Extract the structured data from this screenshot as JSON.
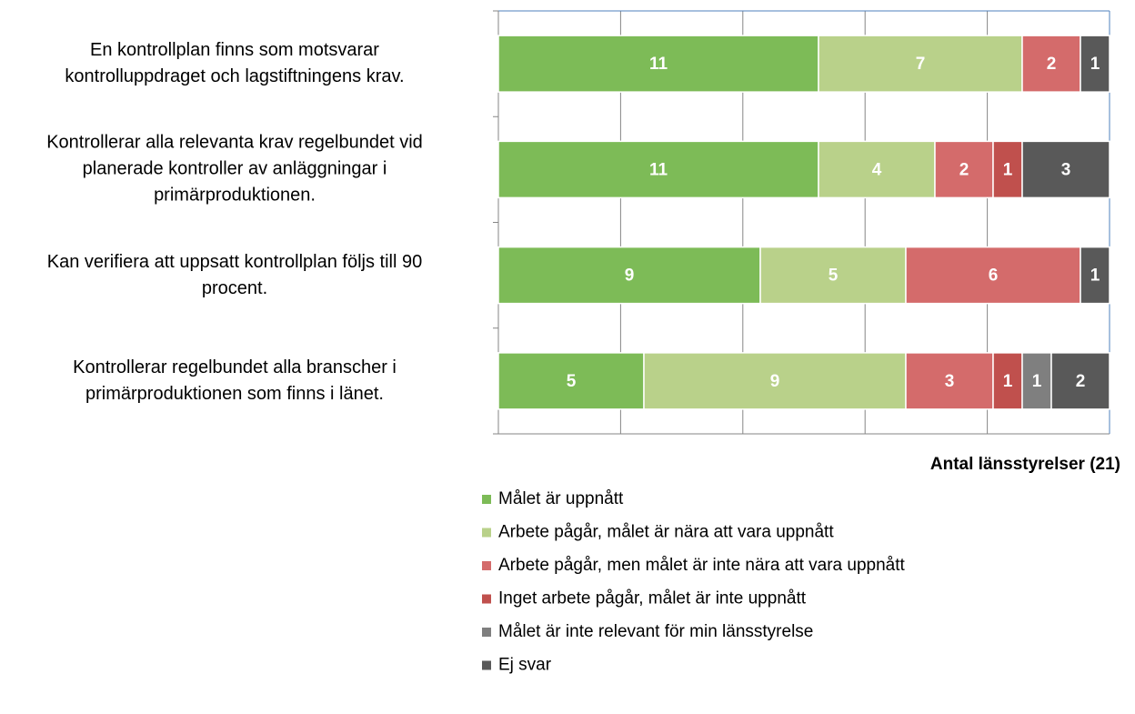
{
  "chart_data": {
    "type": "stacked-bar-horizontal",
    "categories": [
      "En kontrollplan finns som motsvarar\nkontrolluppdraget och lagstiftningens krav.",
      "Kontrollerar alla relevanta krav regelbundet vid\nplanerade kontroller av anläggningar i\nprimärproduktionen.",
      "Kan verifiera att uppsatt kontrollplan följs till 90\nprocent.",
      "Kontrollerar regelbundet alla branscher i\nprimärproduktionen som finns i länet."
    ],
    "series": [
      {
        "name": "Målet är uppnått",
        "color": "#7dbb57",
        "values": [
          11,
          11,
          9,
          5
        ]
      },
      {
        "name": "Arbete pågår, målet är nära att vara uppnått",
        "color": "#b9d18a",
        "values": [
          7,
          4,
          5,
          9
        ]
      },
      {
        "name": "Arbete pågår, men målet är inte nära att vara uppnått",
        "color": "#d46b6b",
        "values": [
          2,
          2,
          6,
          3
        ]
      },
      {
        "name": "Inget arbete pågår, målet är inte uppnått",
        "color": "#c0504d",
        "values": [
          null,
          1,
          null,
          1
        ]
      },
      {
        "name": "Målet är inte relevant för min länsstyrelse",
        "color": "#7f7f7f",
        "values": [
          null,
          null,
          null,
          1
        ]
      },
      {
        "name": "Ej svar",
        "color": "#595959",
        "values": [
          1,
          3,
          1,
          2
        ]
      }
    ],
    "x_label": "Antal länsstyrelser (21)",
    "xlim": [
      0,
      21
    ],
    "xticks": [
      0,
      4.2,
      8.4,
      12.6,
      16.8,
      21
    ],
    "grid": true
  }
}
